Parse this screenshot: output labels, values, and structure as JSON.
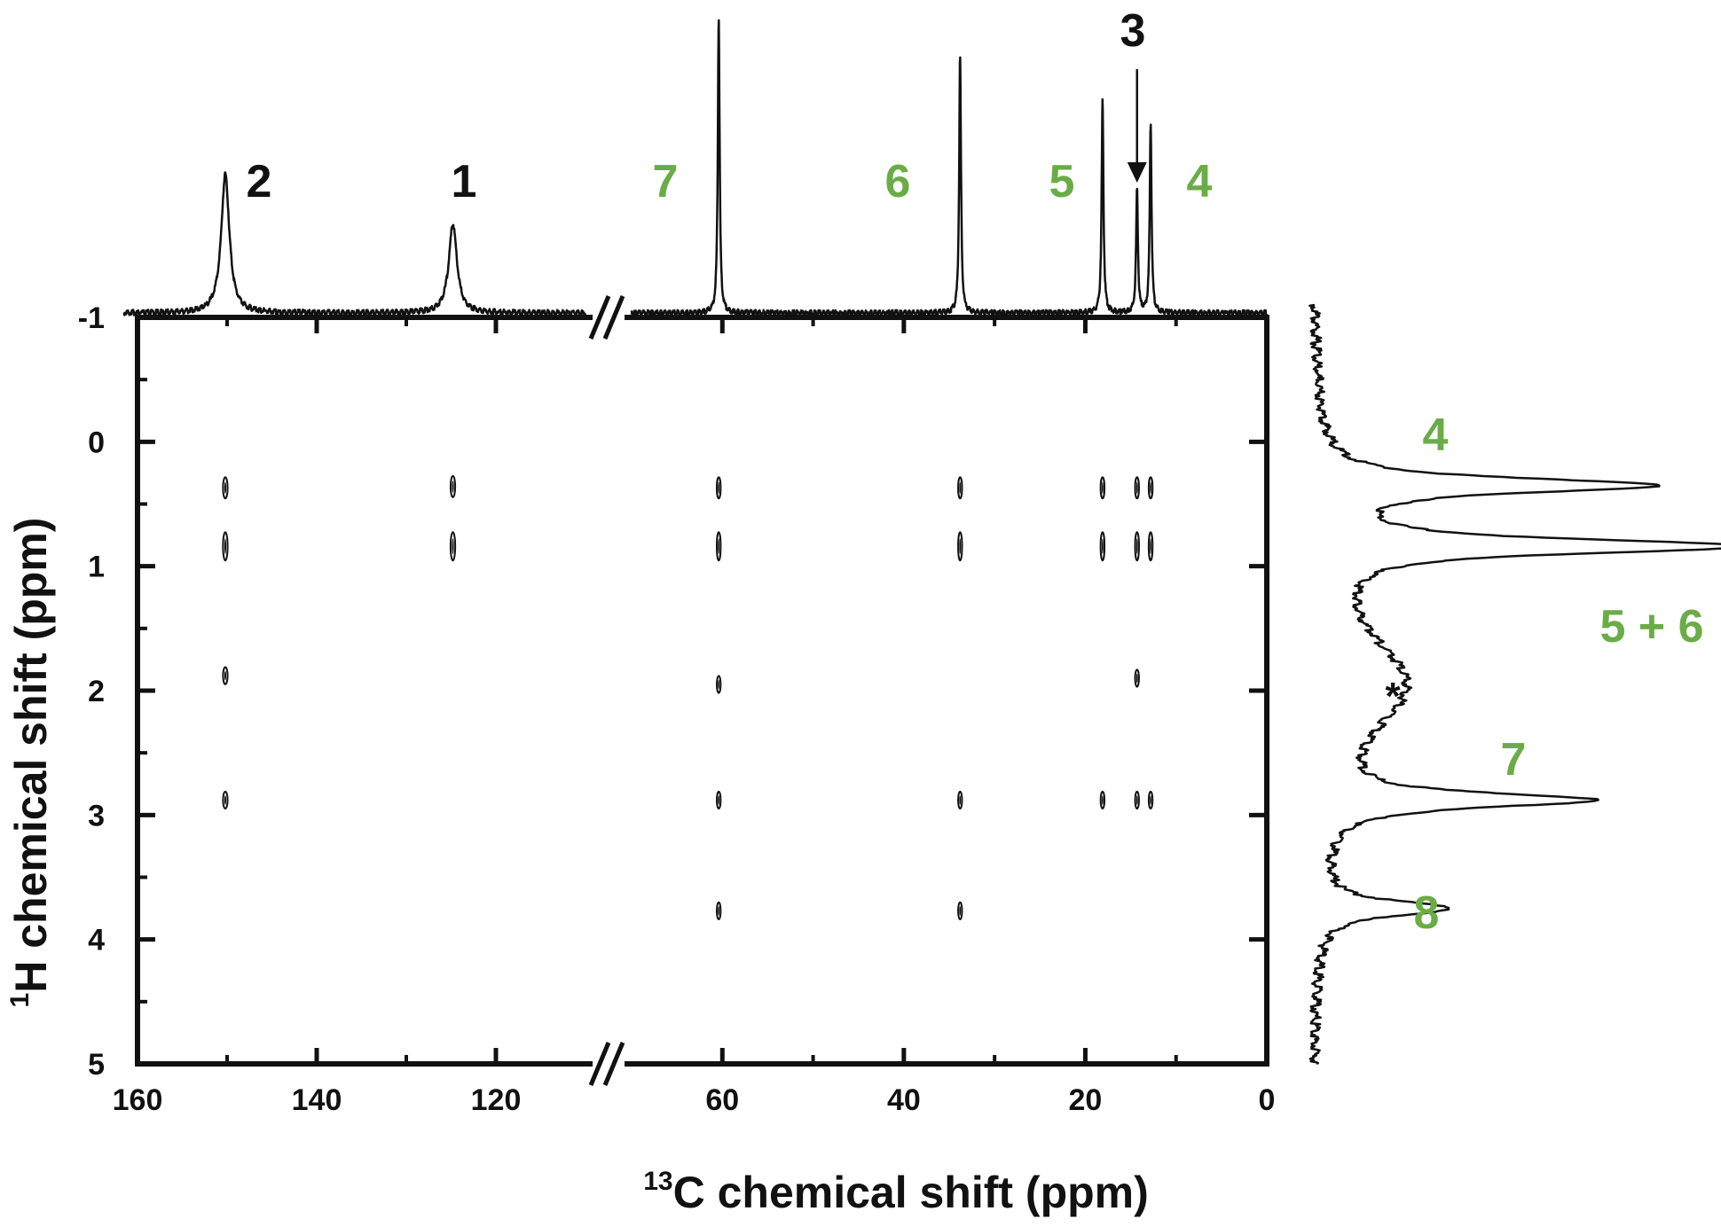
{
  "chart_data": {
    "type": "heatmap",
    "title": "",
    "xlabel": {
      "sup": "13",
      "text": "C chemical shift (ppm)"
    },
    "ylabel": {
      "sup": "1",
      "text": "H chemical shift (ppm)"
    },
    "x_axis": {
      "segments": [
        {
          "range": [
            160,
            110
          ]
        },
        {
          "range": [
            70,
            0
          ]
        }
      ],
      "ticks": [
        "160",
        "140",
        "120",
        "60",
        "40",
        "20",
        "0"
      ],
      "tick_values": [
        160,
        140,
        120,
        60,
        40,
        20,
        0
      ],
      "minor_tick_values": [
        150,
        130,
        50,
        30,
        10
      ],
      "axis_break": "//"
    },
    "y_axis": {
      "range": [
        -1,
        5
      ],
      "ticks": [
        "-1",
        "0",
        "1",
        "2",
        "3",
        "4",
        "5"
      ],
      "tick_values": [
        -1,
        0,
        1,
        2,
        3,
        4,
        5
      ],
      "minor_tick_values": [
        -0.5,
        0.5,
        1.5,
        2.5,
        3.5,
        4.5
      ]
    },
    "carbon_1d": {
      "peaks": [
        {
          "label": "2",
          "shift": 150.2,
          "height": 0.47,
          "color": "black"
        },
        {
          "label": "1",
          "shift": 124.8,
          "height": 0.3,
          "color": "black"
        },
        {
          "label": "7",
          "shift": 60.4,
          "height": 1.0,
          "color": "green"
        },
        {
          "label": "6",
          "shift": 33.8,
          "height": 0.87,
          "color": "green"
        },
        {
          "label": "5",
          "shift": 18.1,
          "height": 0.72,
          "color": "green"
        },
        {
          "label": "3",
          "shift": 14.3,
          "height": 0.42,
          "color": "black",
          "arrow": true
        },
        {
          "label": "4",
          "shift": 12.8,
          "height": 0.64,
          "color": "green"
        }
      ]
    },
    "proton_1d": {
      "peaks": [
        {
          "label": "4",
          "shift": 0.35,
          "height": 0.8,
          "color": "green"
        },
        {
          "label": "5 + 6",
          "shift": 0.84,
          "height": 1.0,
          "color": "green"
        },
        {
          "label": "*",
          "shift": 1.95,
          "height": 0.22,
          "color": "black"
        },
        {
          "label": "7",
          "shift": 2.88,
          "height": 0.63,
          "color": "green"
        },
        {
          "label": "8",
          "shift": 3.75,
          "height": 0.32,
          "color": "green"
        }
      ]
    },
    "cross_peaks": [
      {
        "c": 150.2,
        "h": 0.37
      },
      {
        "c": 150.2,
        "h": 0.84
      },
      {
        "c": 150.2,
        "h": 1.88
      },
      {
        "c": 150.2,
        "h": 2.88
      },
      {
        "c": 124.8,
        "h": 0.36
      },
      {
        "c": 124.8,
        "h": 0.84
      },
      {
        "c": 60.4,
        "h": 0.37
      },
      {
        "c": 60.4,
        "h": 0.84
      },
      {
        "c": 60.4,
        "h": 1.95
      },
      {
        "c": 60.4,
        "h": 2.88
      },
      {
        "c": 60.4,
        "h": 3.77
      },
      {
        "c": 33.8,
        "h": 0.37
      },
      {
        "c": 33.8,
        "h": 0.84
      },
      {
        "c": 33.8,
        "h": 2.88
      },
      {
        "c": 33.8,
        "h": 3.77
      },
      {
        "c": 18.1,
        "h": 0.37
      },
      {
        "c": 18.1,
        "h": 0.84
      },
      {
        "c": 18.1,
        "h": 2.88
      },
      {
        "c": 14.3,
        "h": 0.37
      },
      {
        "c": 14.3,
        "h": 0.84
      },
      {
        "c": 14.3,
        "h": 1.9
      },
      {
        "c": 14.3,
        "h": 2.88
      },
      {
        "c": 12.8,
        "h": 0.37
      },
      {
        "c": 12.8,
        "h": 0.84
      },
      {
        "c": 12.8,
        "h": 2.88
      }
    ],
    "colors": {
      "green": "#6aac46",
      "black": "#111111"
    }
  }
}
